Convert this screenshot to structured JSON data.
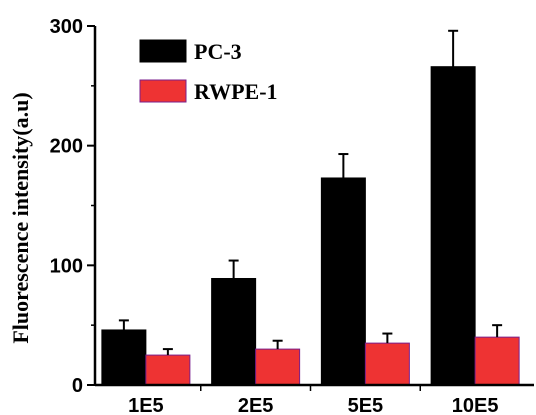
{
  "chart_data": {
    "type": "bar",
    "categories": [
      "1E5",
      "2E5",
      "5E5",
      "10E5"
    ],
    "series": [
      {
        "name": "PC-3",
        "color": "#000000",
        "values": [
          46,
          89,
          173,
          266
        ],
        "errors": [
          8,
          15,
          20,
          30
        ]
      },
      {
        "name": "RWPE-1",
        "color": "#ee3333",
        "values": [
          25,
          30,
          35,
          40
        ],
        "errors": [
          5,
          7,
          8,
          10
        ]
      }
    ],
    "title": "",
    "xlabel": "",
    "ylabel": "Fluorescence intensity(a.u)",
    "ylim": [
      0,
      300
    ],
    "yticks": [
      0,
      100,
      200,
      300
    ],
    "grid": false,
    "legend_position": "top-left"
  }
}
